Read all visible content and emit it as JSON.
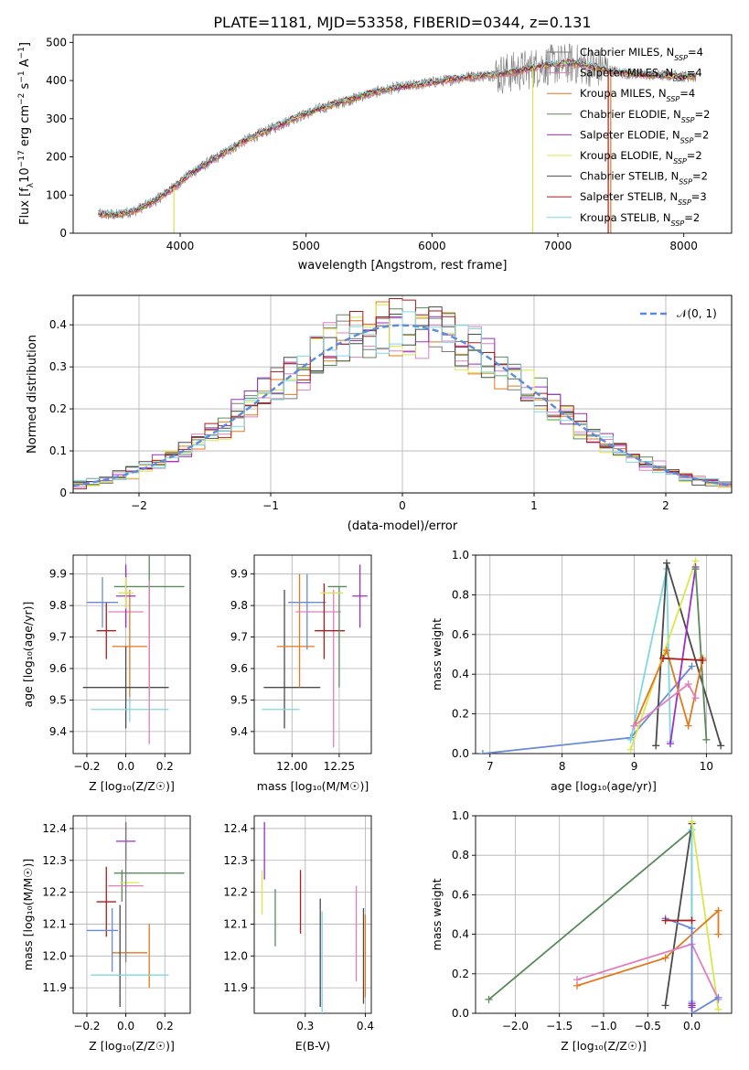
{
  "title": "PLATE=1181, MJD=53358, FIBERID=0344, z=0.131",
  "colors": {
    "chab_miles": "#7a7a7a",
    "salp_miles": "#e07fbf",
    "krou_miles": "#e0791f",
    "chab_elodie": "#5a8a5a",
    "salp_elodie": "#9b2fc8",
    "krou_elodie": "#d8e84a",
    "chab_stelib": "#4a4a4a",
    "salp_stelib": "#b01c1c",
    "krou_stelib": "#7fd8e0",
    "normal": "#5b8cdc",
    "blue": "#6a8ad8"
  },
  "legend1": [
    {
      "label": "Chabrier MILES, N",
      "sub": "SSP",
      "tail": "=4",
      "color": "chab_miles"
    },
    {
      "label": "Salpeter MILES, N",
      "sub": "SSP",
      "tail": "=4",
      "color": "salp_miles"
    },
    {
      "label": "Kroupa MILES, N",
      "sub": "SSP",
      "tail": "=4",
      "color": "krou_miles"
    },
    {
      "label": "Chabrier ELODIE, N",
      "sub": "SSP",
      "tail": "=2",
      "color": "chab_elodie"
    },
    {
      "label": "Salpeter ELODIE, N",
      "sub": "SSP",
      "tail": "=2",
      "color": "salp_elodie"
    },
    {
      "label": "Kroupa ELODIE, N",
      "sub": "SSP",
      "tail": "=2",
      "color": "krou_elodie"
    },
    {
      "label": "Chabrier STELIB, N",
      "sub": "SSP",
      "tail": "=2",
      "color": "chab_stelib"
    },
    {
      "label": "Salpeter STELIB, N",
      "sub": "SSP",
      "tail": "=3",
      "color": "salp_stelib"
    },
    {
      "label": "Kroupa STELIB, N",
      "sub": "SSP",
      "tail": "=2",
      "color": "krou_stelib"
    }
  ],
  "legend2": {
    "label": "𝒩(0, 1)"
  },
  "chart_data": [
    {
      "id": "spectrum",
      "type": "line",
      "xlabel": "wavelength [Angstrom, rest frame]",
      "ylabel_parts": [
        "Flux [f",
        "λ",
        "10",
        "−17",
        " erg cm",
        "−2",
        " s",
        "−1",
        " A",
        "−1",
        "]"
      ],
      "xlim": [
        3150,
        8380
      ],
      "ylim": [
        0,
        520
      ],
      "xticks": [
        4000,
        5000,
        6000,
        7000,
        8000
      ],
      "yticks": [
        0,
        100,
        200,
        300,
        400,
        500
      ],
      "grid": false,
      "continuum": {
        "x": [
          3350,
          3500,
          3650,
          3800,
          3950,
          4100,
          4300,
          4500,
          4700,
          4900,
          5100,
          5300,
          5500,
          5700,
          5900,
          6100,
          6300,
          6500,
          6700,
          6900,
          7100,
          7300,
          7500,
          7700,
          7900,
          8100
        ],
        "y": [
          50,
          48,
          60,
          85,
          120,
          160,
          200,
          240,
          270,
          300,
          325,
          345,
          365,
          380,
          390,
          400,
          410,
          415,
          425,
          440,
          445,
          435,
          420,
          415,
          412,
          410
        ]
      }
    },
    {
      "id": "residuals",
      "type": "bar",
      "xlabel": "(data-model)/error",
      "ylabel": "Normed distribution",
      "xlim": [
        -2.5,
        2.5
      ],
      "ylim": [
        0,
        0.47
      ],
      "xticks": [
        -2,
        -1,
        0,
        1,
        2
      ],
      "xtick_labels": [
        "−2",
        "−1",
        "0",
        "1",
        "2"
      ],
      "yticks": [
        0.0,
        0.1,
        0.2,
        0.3,
        0.4
      ],
      "grid": true,
      "bin_width": 0.1,
      "legend": "top-right"
    },
    {
      "id": "age_vs_Z",
      "type": "scatter",
      "xlabel": "Z [log₁₀(Z/Z☉)]",
      "ylabel": "age  [log₁₀(age/yr)]",
      "xlim": [
        -0.27,
        0.33
      ],
      "ylim": [
        9.33,
        9.96
      ],
      "xticks": [
        -0.2,
        0.0,
        0.2
      ],
      "xtick_labels": [
        "−0.2",
        "0.0",
        "0.2"
      ],
      "yticks": [
        9.4,
        9.5,
        9.6,
        9.7,
        9.8,
        9.9
      ],
      "points": [
        {
          "c": "chab_miles",
          "x": 0.0,
          "y": 9.87,
          "xe": 0.0,
          "ye": 0.05
        },
        {
          "c": "salp_miles",
          "x": 0.0,
          "y": 9.78,
          "xe": 0.09,
          "ye": 0.05
        },
        {
          "c": "krou_miles",
          "x": 0.02,
          "y": 9.67,
          "xe": 0.09,
          "ye": 0.18
        },
        {
          "c": "chab_elodie",
          "x": 0.12,
          "y": 9.86,
          "xe": 0.18,
          "ye": 0.15
        },
        {
          "c": "salp_elodie",
          "x": 0.0,
          "y": 9.83,
          "xe": 0.05,
          "ye": 0.1
        },
        {
          "c": "krou_elodie",
          "x": 0.0,
          "y": 9.84,
          "xe": 0.04,
          "ye": 0.05
        },
        {
          "c": "chab_stelib",
          "x": 0.0,
          "y": 9.54,
          "xe": 0.22,
          "ye": 0.13
        },
        {
          "c": "salp_stelib",
          "x": -0.1,
          "y": 9.72,
          "xe": 0.05,
          "ye": 0.09
        },
        {
          "c": "krou_stelib",
          "x": 0.02,
          "y": 9.47,
          "xe": 0.2,
          "ye": 0.04
        },
        {
          "c": "blue",
          "x": -0.12,
          "y": 9.81,
          "xe": 0.08,
          "ye": 0.08
        },
        {
          "c": "krou_miles",
          "x": 0.12,
          "y": 9.67,
          "xe": 0.0,
          "ye": 0.16
        },
        {
          "c": "salp_miles",
          "x": 0.12,
          "y": 9.62,
          "xe": 0.0,
          "ye": 0.26
        }
      ]
    },
    {
      "id": "age_vs_mass",
      "type": "scatter",
      "xlabel": "mass [log₁₀(M/M☉)]",
      "xlim": [
        11.8,
        12.42
      ],
      "ylim": [
        9.33,
        9.96
      ],
      "xticks": [
        12.0,
        12.25
      ],
      "xtick_labels": [
        "12.00",
        "12.25"
      ],
      "yticks": [
        9.4,
        9.5,
        9.6,
        9.7,
        9.8,
        9.9
      ],
      "points": [
        {
          "c": "chab_stelib",
          "x": 12.0,
          "y": 9.54,
          "xe": 0.15,
          "ye": 0.0
        },
        {
          "c": "chab_stelib",
          "x": 11.96,
          "y": 9.63,
          "xe": 0.0,
          "ye": 0.22
        },
        {
          "c": "krou_stelib",
          "x": 11.94,
          "y": 9.47,
          "xe": 0.1,
          "ye": 0.0
        },
        {
          "c": "krou_miles",
          "x": 12.02,
          "y": 9.67,
          "xe": 0.1,
          "ye": 0.0
        },
        {
          "c": "krou_miles",
          "x": 12.04,
          "y": 9.72,
          "xe": 0.0,
          "ye": 0.18
        },
        {
          "c": "blue",
          "x": 12.08,
          "y": 9.81,
          "xe": 0.1,
          "ye": 0.0
        },
        {
          "c": "blue",
          "x": 12.08,
          "y": 9.78,
          "xe": 0.0,
          "ye": 0.12
        },
        {
          "c": "salp_miles",
          "x": 12.14,
          "y": 9.78,
          "xe": 0.12,
          "ye": 0.0
        },
        {
          "c": "salp_miles",
          "x": 12.22,
          "y": 9.6,
          "xe": 0.0,
          "ye": 0.25
        },
        {
          "c": "salp_stelib",
          "x": 12.2,
          "y": 9.72,
          "xe": 0.08,
          "ye": 0.0
        },
        {
          "c": "salp_stelib",
          "x": 12.17,
          "y": 9.75,
          "xe": 0.0,
          "ye": 0.12
        },
        {
          "c": "chab_elodie",
          "x": 12.24,
          "y": 9.86,
          "xe": 0.05,
          "ye": 0.0
        },
        {
          "c": "chab_elodie",
          "x": 12.25,
          "y": 9.7,
          "xe": 0.0,
          "ye": 0.16
        },
        {
          "c": "krou_elodie",
          "x": 12.21,
          "y": 9.84,
          "xe": 0.06,
          "ye": 0.0
        },
        {
          "c": "salp_elodie",
          "x": 12.36,
          "y": 9.83,
          "xe": 0.04,
          "ye": 0.1
        }
      ]
    },
    {
      "id": "weight_vs_age",
      "type": "line",
      "xlabel": "age  [log₁₀(age/yr)]",
      "ylabel": "mass weight",
      "xlim": [
        6.8,
        10.35
      ],
      "ylim": [
        0,
        1.0
      ],
      "xticks": [
        7,
        8,
        9,
        10
      ],
      "yticks": [
        0.0,
        0.2,
        0.4,
        0.6,
        0.8,
        1.0
      ],
      "series": [
        {
          "c": "blue",
          "x": [
            6.9,
            8.95,
            9.8
          ],
          "y": [
            0.0,
            0.08,
            0.44
          ]
        },
        {
          "c": "krou_stelib",
          "x": [
            8.95,
            9.45,
            9.5
          ],
          "y": [
            0.07,
            0.93,
            0.06
          ]
        },
        {
          "c": "chab_stelib",
          "x": [
            9.3,
            9.45,
            10.2
          ],
          "y": [
            0.04,
            0.96,
            0.04
          ]
        },
        {
          "c": "krou_elodie",
          "x": [
            8.95,
            9.85
          ],
          "y": [
            0.02,
            0.97
          ]
        },
        {
          "c": "salp_elodie",
          "x": [
            9.5,
            9.85
          ],
          "y": [
            0.05,
            0.94
          ]
        },
        {
          "c": "chab_elodie",
          "x": [
            9.85,
            10.0
          ],
          "y": [
            0.93,
            0.07
          ]
        },
        {
          "c": "krou_miles",
          "x": [
            9.0,
            9.45,
            9.75,
            9.95
          ],
          "y": [
            0.14,
            0.52,
            0.14,
            0.48
          ]
        },
        {
          "c": "salp_miles",
          "x": [
            9.0,
            9.75,
            9.85
          ],
          "y": [
            0.14,
            0.35,
            0.28
          ]
        },
        {
          "c": "salp_stelib",
          "x": [
            9.4,
            9.95
          ],
          "y": [
            0.48,
            0.47
          ]
        }
      ]
    },
    {
      "id": "mass_vs_Z",
      "type": "scatter",
      "xlabel": "Z [log₁₀(Z/Z☉)]",
      "ylabel": "mass [log₁₀(M/M☉)]",
      "xlim": [
        -0.27,
        0.33
      ],
      "ylim": [
        11.82,
        12.44
      ],
      "xticks": [
        -0.2,
        0.0,
        0.2
      ],
      "xtick_labels": [
        "−0.2",
        "0.0",
        "0.2"
      ],
      "yticks": [
        11.9,
        12.0,
        12.1,
        12.2,
        12.3,
        12.4
      ],
      "points": [
        {
          "c": "salp_elodie",
          "x": 0.0,
          "y": 12.36,
          "xe": 0.05,
          "ye": 0.06
        },
        {
          "c": "chab_elodie",
          "x": 0.12,
          "y": 12.26,
          "xe": 0.18,
          "ye": 0.0
        },
        {
          "c": "chab_elodie",
          "x": -0.02,
          "y": 12.22,
          "xe": 0.0,
          "ye": 0.05
        },
        {
          "c": "krou_elodie",
          "x": 0.02,
          "y": 12.23,
          "xe": 0.05,
          "ye": 0.0
        },
        {
          "c": "salp_miles",
          "x": 0.0,
          "y": 12.22,
          "xe": 0.09,
          "ye": 0.0
        },
        {
          "c": "salp_stelib",
          "x": -0.1,
          "y": 12.17,
          "xe": 0.05,
          "ye": 0.11
        },
        {
          "c": "blue",
          "x": -0.12,
          "y": 12.08,
          "xe": 0.08,
          "ye": 0.0
        },
        {
          "c": "blue",
          "x": -0.07,
          "y": 12.05,
          "xe": 0.0,
          "ye": 0.1
        },
        {
          "c": "krou_miles",
          "x": 0.02,
          "y": 12.01,
          "xe": 0.09,
          "ye": 0.0
        },
        {
          "c": "krou_miles",
          "x": 0.12,
          "y": 12.0,
          "xe": 0.0,
          "ye": 0.1
        },
        {
          "c": "chab_stelib",
          "x": -0.03,
          "y": 12.0,
          "xe": 0.0,
          "ye": 0.16
        },
        {
          "c": "krou_stelib",
          "x": 0.02,
          "y": 11.94,
          "xe": 0.2,
          "ye": 0.0
        },
        {
          "c": "chab_miles",
          "x": 0.0,
          "y": 12.2,
          "xe": 0.0,
          "ye": 0.22
        }
      ]
    },
    {
      "id": "mass_vs_EBV",
      "type": "scatter",
      "xlabel": "E(B-V)",
      "xlim": [
        0.215,
        0.41
      ],
      "ylim": [
        11.82,
        12.44
      ],
      "xticks": [
        0.2,
        0.3,
        0.4
      ],
      "xtick_labels": [
        "0.2",
        "0.3",
        "0.4"
      ],
      "yticks": [
        11.9,
        12.0,
        12.1,
        12.2,
        12.3,
        12.4
      ],
      "points": [
        {
          "c": "krou_elodie",
          "x": 0.228,
          "y": 12.2,
          "xe": 0.0,
          "ye": 0.07
        },
        {
          "c": "salp_elodie",
          "x": 0.232,
          "y": 12.33,
          "xe": 0.0,
          "ye": 0.09
        },
        {
          "c": "chab_elodie",
          "x": 0.25,
          "y": 12.12,
          "xe": 0.0,
          "ye": 0.09
        },
        {
          "c": "salp_stelib",
          "x": 0.292,
          "y": 12.17,
          "xe": 0.0,
          "ye": 0.1
        },
        {
          "c": "chab_stelib",
          "x": 0.325,
          "y": 12.01,
          "xe": 0.0,
          "ye": 0.17
        },
        {
          "c": "krou_stelib",
          "x": 0.328,
          "y": 11.98,
          "xe": 0.0,
          "ye": 0.16
        },
        {
          "c": "salp_miles",
          "x": 0.385,
          "y": 12.07,
          "xe": 0.0,
          "ye": 0.15
        },
        {
          "c": "chab_stelib",
          "x": 0.397,
          "y": 12.0,
          "xe": 0.0,
          "ye": 0.15
        },
        {
          "c": "krou_miles",
          "x": 0.4,
          "y": 12.0,
          "xe": 0.0,
          "ye": 0.13
        }
      ]
    },
    {
      "id": "weight_vs_Z",
      "type": "line",
      "xlabel": "Z [log₁₀(Z/Z☉)]",
      "ylabel": "mass weight",
      "xlim": [
        -2.45,
        0.45
      ],
      "ylim": [
        0,
        1.0
      ],
      "xticks": [
        -2.0,
        -1.5,
        -1.0,
        -0.5,
        0.0
      ],
      "xtick_labels": [
        "−2.0",
        "−1.5",
        "−1.0",
        "−0.5",
        "0.0"
      ],
      "yticks": [
        0.0,
        0.2,
        0.4,
        0.6,
        0.8,
        1.0
      ],
      "series": [
        {
          "c": "chab_elodie",
          "x": [
            -2.3,
            0.0
          ],
          "y": [
            0.07,
            0.93
          ]
        },
        {
          "c": "chab_stelib",
          "x": [
            -0.3,
            0.0,
            0.0
          ],
          "y": [
            0.04,
            0.96,
            0.04
          ]
        },
        {
          "c": "krou_stelib",
          "x": [
            0.0,
            0.0
          ],
          "y": [
            0.93,
            0.06
          ]
        },
        {
          "c": "krou_elodie",
          "x": [
            0.0,
            0.3
          ],
          "y": [
            0.97,
            0.02
          ]
        },
        {
          "c": "krou_miles",
          "x": [
            -1.3,
            -0.3,
            0.3,
            0.3
          ],
          "y": [
            0.14,
            0.28,
            0.52,
            0.4
          ]
        },
        {
          "c": "salp_miles",
          "x": [
            -1.3,
            0.0,
            0.3
          ],
          "y": [
            0.17,
            0.35,
            0.07
          ]
        },
        {
          "c": "blue",
          "x": [
            -0.3,
            0.0,
            0.0,
            0.3
          ],
          "y": [
            0.48,
            0.43,
            0.0,
            0.08
          ]
        },
        {
          "c": "salp_stelib",
          "x": [
            -0.3,
            0.0
          ],
          "y": [
            0.47,
            0.47
          ]
        },
        {
          "c": "salp_elodie",
          "x": [
            0.0,
            0.0
          ],
          "y": [
            0.05,
            0.03
          ]
        }
      ]
    }
  ]
}
